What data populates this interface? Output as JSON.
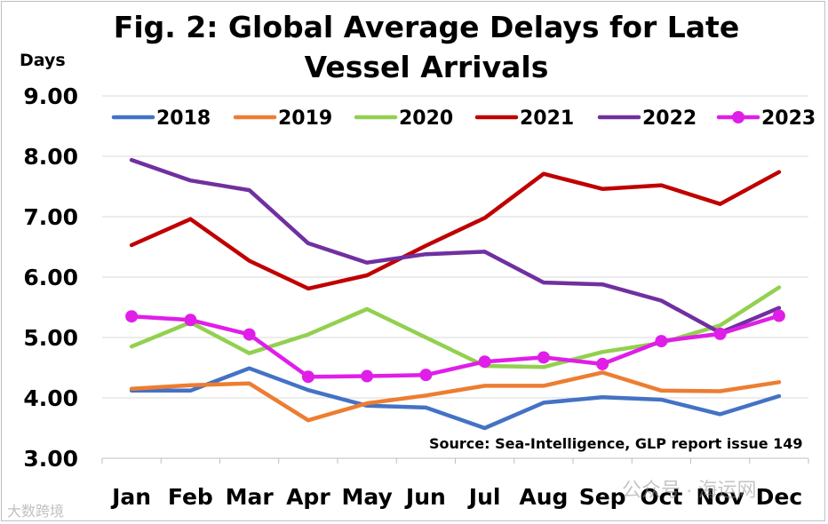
{
  "chart_data": {
    "type": "line",
    "title": "Fig. 2: Global Average Delays for Late Vessel Arrivals",
    "title_lines": [
      "Fig. 2: Global Average Delays for Late",
      "Vessel Arrivals"
    ],
    "ylabel": "Days",
    "xlabel": "",
    "ylim": [
      3.0,
      9.0
    ],
    "yticks": [
      "3.00",
      "4.00",
      "5.00",
      "6.00",
      "7.00",
      "8.00",
      "9.00"
    ],
    "grid": true,
    "legend_position": "top",
    "categories": [
      "Jan",
      "Feb",
      "Mar",
      "Apr",
      "May",
      "Jun",
      "Jul",
      "Aug",
      "Sep",
      "Oct",
      "Nov",
      "Dec"
    ],
    "series": [
      {
        "name": "2018",
        "color": "#4472c4",
        "markers": false,
        "values": [
          4.12,
          4.12,
          4.49,
          4.13,
          3.87,
          3.84,
          3.5,
          3.92,
          4.01,
          3.97,
          3.73,
          4.03
        ]
      },
      {
        "name": "2019",
        "color": "#ed7d31",
        "markers": false,
        "values": [
          4.15,
          4.21,
          4.24,
          3.63,
          3.91,
          4.04,
          4.2,
          4.2,
          4.42,
          4.12,
          4.11,
          4.26
        ]
      },
      {
        "name": "2020",
        "color": "#92d050",
        "markers": false,
        "values": [
          4.85,
          5.25,
          4.74,
          5.05,
          5.47,
          5.0,
          4.53,
          4.51,
          4.76,
          4.91,
          5.2,
          5.83
        ]
      },
      {
        "name": "2021",
        "color": "#c00000",
        "markers": false,
        "values": [
          6.53,
          6.96,
          6.27,
          5.81,
          6.03,
          6.52,
          6.98,
          7.71,
          7.46,
          7.52,
          7.21,
          7.74
        ]
      },
      {
        "name": "2022",
        "color": "#7030a0",
        "markers": false,
        "values": [
          7.94,
          7.6,
          7.44,
          6.56,
          6.24,
          6.38,
          6.42,
          5.91,
          5.88,
          5.61,
          5.08,
          5.49
        ]
      },
      {
        "name": "2023",
        "color": "#e01ee8",
        "markers": true,
        "values": [
          5.35,
          5.29,
          5.05,
          4.35,
          4.36,
          4.38,
          4.6,
          4.67,
          4.56,
          4.94,
          5.06,
          5.36
        ]
      }
    ],
    "source": "Source: Sea-Intelligence, GLP report issue 149"
  },
  "watermarks": {
    "left": "大数跨境",
    "right": "公众号 · 海运网"
  }
}
